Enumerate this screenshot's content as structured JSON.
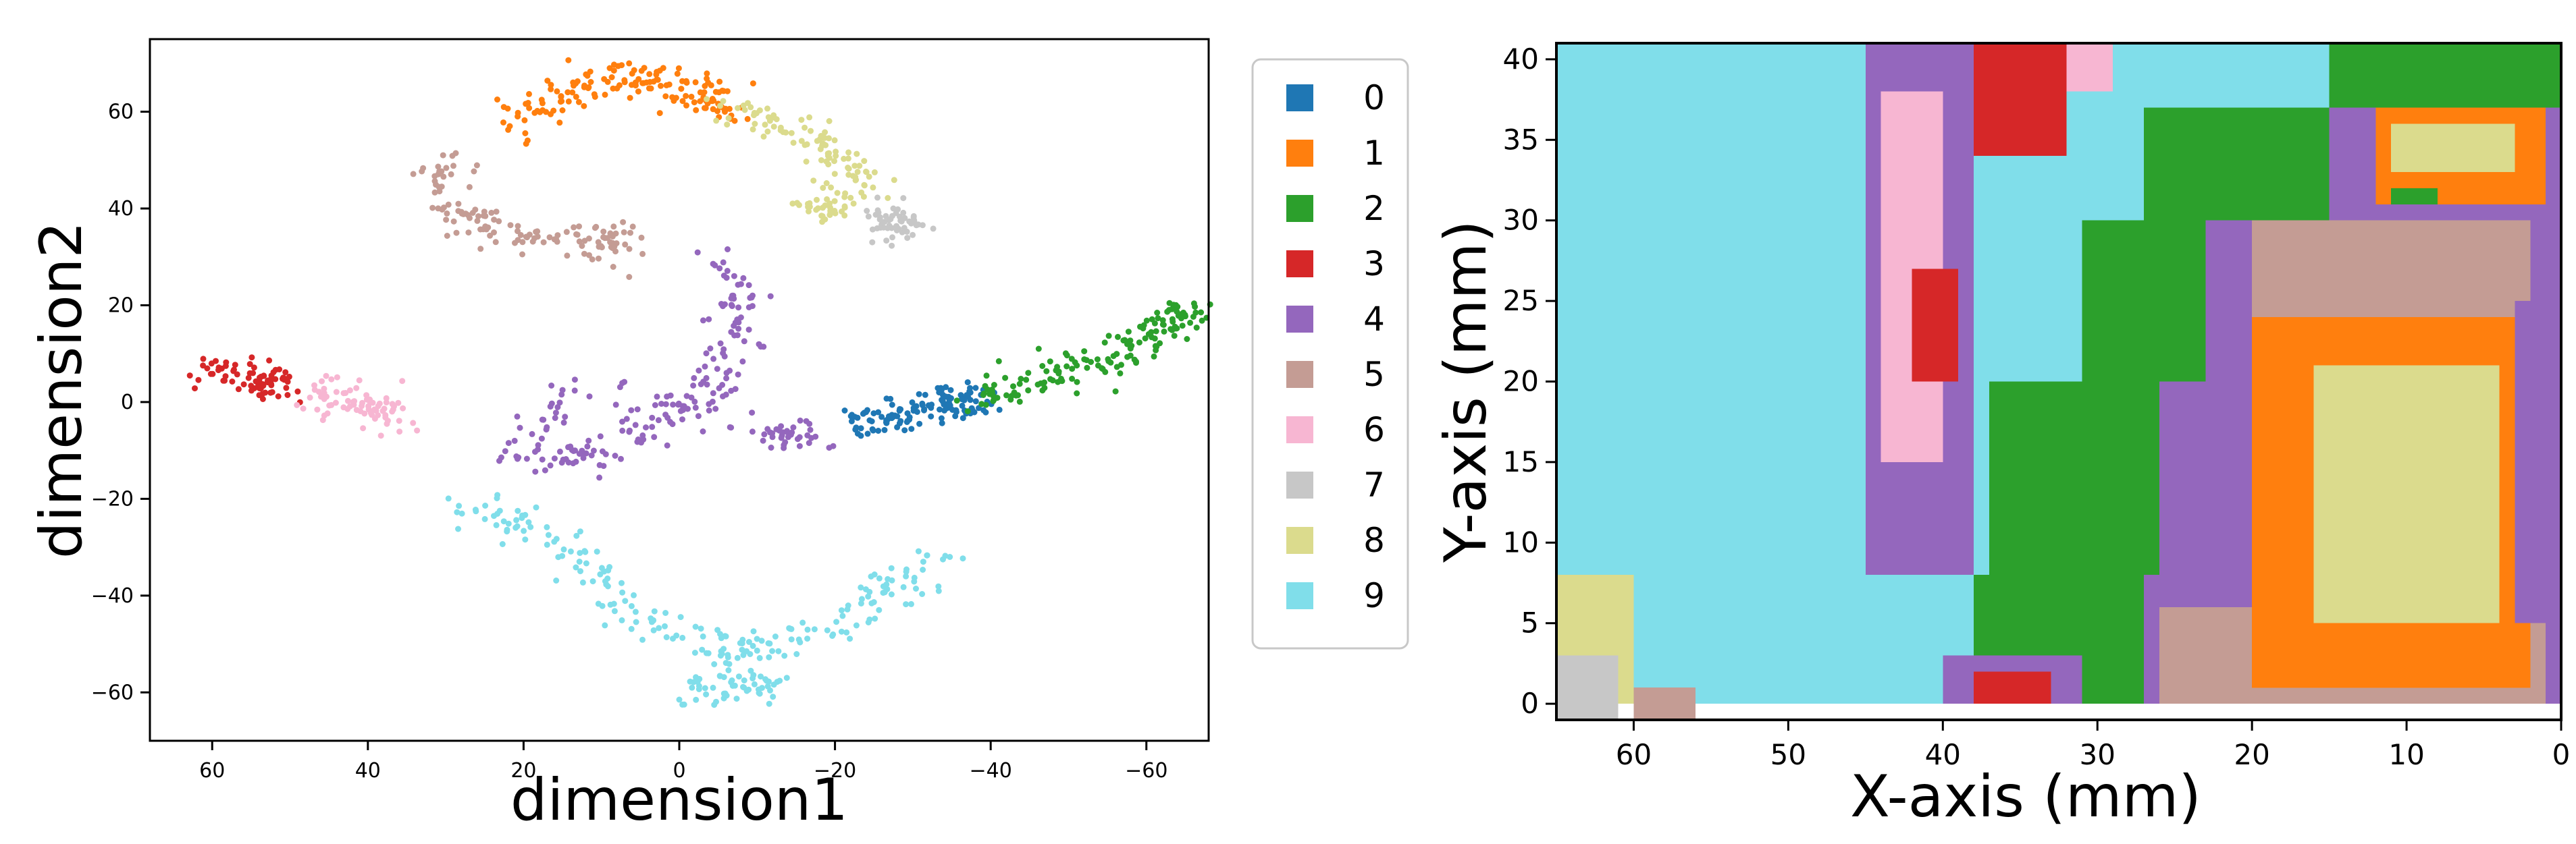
{
  "colors": {
    "0": "#1f77b4",
    "1": "#ff7f0e",
    "2": "#2ca02c",
    "3": "#d62728",
    "4": "#9467bd",
    "5": "#c49c94",
    "6": "#f7b6d2",
    "7": "#c7c7c7",
    "8": "#dbdb8d",
    "9": "#80deea"
  },
  "chart_data": [
    {
      "type": "scatter",
      "title": "",
      "xlabel": "dimension1",
      "ylabel": "dimension2",
      "xlim": [
        68,
        -68
      ],
      "ylim": [
        -70,
        75
      ],
      "x_ticks": [
        60,
        40,
        20,
        0,
        -20,
        -40,
        -60
      ],
      "x_tick_labels": [
        "60",
        "40",
        "20",
        "0",
        "−20",
        "−40",
        "−60"
      ],
      "y_ticks": [
        -60,
        -40,
        -20,
        0,
        20,
        40,
        60
      ],
      "y_tick_labels": [
        "−60",
        "−40",
        "−20",
        "0",
        "20",
        "40",
        "60"
      ],
      "grid": false,
      "legend": {
        "placement": "outside-right",
        "entries": [
          "0",
          "1",
          "2",
          "3",
          "4",
          "5",
          "6",
          "7",
          "8",
          "9"
        ]
      },
      "series": [
        {
          "label": "0",
          "points": [
            [
              -22,
              -5
            ],
            [
              -26,
              -3
            ],
            [
              -30,
              -2
            ],
            [
              -34,
              0
            ],
            [
              -37,
              0
            ]
          ]
        },
        {
          "label": "1",
          "points": [
            [
              22,
              58
            ],
            [
              17,
              62
            ],
            [
              12,
              65
            ],
            [
              6,
              67
            ],
            [
              0,
              66
            ],
            [
              -5,
              62
            ]
          ]
        },
        {
          "label": "2",
          "points": [
            [
              -38,
              1
            ],
            [
              -44,
              3
            ],
            [
              -50,
              6
            ],
            [
              -55,
              9
            ],
            [
              -60,
              13
            ],
            [
              -65,
              18
            ]
          ]
        },
        {
          "label": "3",
          "points": [
            [
              60,
              7
            ],
            [
              56,
              6
            ],
            [
              52,
              4
            ]
          ]
        },
        {
          "label": "4",
          "points": [
            [
              -5,
              30
            ],
            [
              -8,
              20
            ],
            [
              -6,
              10
            ],
            [
              -3,
              0
            ],
            [
              4,
              -5
            ],
            [
              12,
              -12
            ],
            [
              20,
              -10
            ],
            [
              15,
              3
            ],
            [
              -15,
              -7
            ]
          ]
        },
        {
          "label": "5",
          "points": [
            [
              30,
              50
            ],
            [
              30,
              40
            ],
            [
              25,
              36
            ],
            [
              18,
              34
            ],
            [
              8,
              33
            ]
          ]
        },
        {
          "label": "6",
          "points": [
            [
              48,
              2
            ],
            [
              43,
              0
            ],
            [
              38,
              -2
            ]
          ]
        },
        {
          "label": "7",
          "points": [
            [
              -27,
              39
            ],
            [
              -28,
              37
            ]
          ]
        },
        {
          "label": "8",
          "points": [
            [
              -7,
              61
            ],
            [
              -13,
              57
            ],
            [
              -19,
              52
            ],
            [
              -24,
              46
            ],
            [
              -18,
              40
            ]
          ]
        },
        {
          "label": "9",
          "points": [
            [
              28,
              -22
            ],
            [
              20,
              -25
            ],
            [
              10,
              -35
            ],
            [
              5,
              -45
            ],
            [
              -5,
              -52
            ],
            [
              -15,
              -50
            ],
            [
              -25,
              -40
            ],
            [
              -35,
              -32
            ],
            [
              0,
              -60
            ],
            [
              -10,
              -58
            ]
          ]
        }
      ]
    },
    {
      "type": "heatmap",
      "title": "",
      "xlabel": "X-axis (mm)",
      "ylabel": "Y-axis (mm)",
      "xlim": [
        65,
        0
      ],
      "ylim": [
        -1,
        41
      ],
      "x_ticks": [
        60,
        50,
        40,
        30,
        20,
        10,
        0
      ],
      "y_ticks": [
        0,
        5,
        10,
        15,
        20,
        25,
        30,
        35,
        40
      ],
      "grid": false,
      "cell_size_mm": 1,
      "regions": [
        {
          "label": "4",
          "x_range": [
            0,
            27
          ],
          "y_range": [
            0,
            41
          ]
        },
        {
          "label": "9",
          "x_range": [
            27,
            65
          ],
          "y_range": [
            0,
            41
          ]
        },
        {
          "label": "9",
          "x_range": [
            0,
            27
          ],
          "y_range": [
            37,
            41
          ]
        },
        {
          "label": "2",
          "x_range": [
            27,
            38
          ],
          "y_range": [
            0,
            8
          ]
        },
        {
          "label": "2",
          "x_range": [
            26,
            37
          ],
          "y_range": [
            8,
            20
          ]
        },
        {
          "label": "2",
          "x_range": [
            23,
            31
          ],
          "y_range": [
            20,
            30
          ]
        },
        {
          "label": "2",
          "x_range": [
            15,
            27
          ],
          "y_range": [
            30,
            37
          ]
        },
        {
          "label": "2",
          "x_range": [
            0,
            15
          ],
          "y_range": [
            37,
            41
          ]
        },
        {
          "label": "4",
          "x_range": [
            38,
            45
          ],
          "y_range": [
            8,
            41
          ]
        },
        {
          "label": "6",
          "x_range": [
            40,
            44
          ],
          "y_range": [
            15,
            38
          ]
        },
        {
          "label": "3",
          "x_range": [
            39,
            42
          ],
          "y_range": [
            20,
            27
          ]
        },
        {
          "label": "3",
          "x_range": [
            32,
            38
          ],
          "y_range": [
            34,
            41
          ]
        },
        {
          "label": "6",
          "x_range": [
            29,
            32
          ],
          "y_range": [
            38,
            41
          ]
        },
        {
          "label": "4",
          "x_range": [
            31,
            40
          ],
          "y_range": [
            0,
            3
          ]
        },
        {
          "label": "3",
          "x_range": [
            33,
            38
          ],
          "y_range": [
            0,
            2
          ]
        },
        {
          "label": "5",
          "x_range": [
            1,
            26
          ],
          "y_range": [
            0,
            6
          ]
        },
        {
          "label": "5",
          "x_range": [
            2,
            20
          ],
          "y_range": [
            18,
            30
          ]
        },
        {
          "label": "1",
          "x_range": [
            2,
            20
          ],
          "y_range": [
            1,
            24
          ]
        },
        {
          "label": "8",
          "x_range": [
            4,
            16
          ],
          "y_range": [
            5,
            21
          ]
        },
        {
          "label": "4",
          "x_range": [
            0,
            3
          ],
          "y_range": [
            5,
            25
          ]
        },
        {
          "label": "1",
          "x_range": [
            1,
            12
          ],
          "y_range": [
            31,
            37
          ]
        },
        {
          "label": "8",
          "x_range": [
            3,
            11
          ],
          "y_range": [
            33,
            36
          ]
        },
        {
          "label": "2",
          "x_range": [
            8,
            11
          ],
          "y_range": [
            31,
            32
          ]
        },
        {
          "label": "8",
          "x_range": [
            60,
            65
          ],
          "y_range": [
            0,
            8
          ]
        },
        {
          "label": "7",
          "x_range": [
            61,
            65
          ],
          "y_range": [
            -1,
            3
          ]
        },
        {
          "label": "5",
          "x_range": [
            56,
            60
          ],
          "y_range": [
            -1,
            1
          ]
        }
      ]
    }
  ]
}
